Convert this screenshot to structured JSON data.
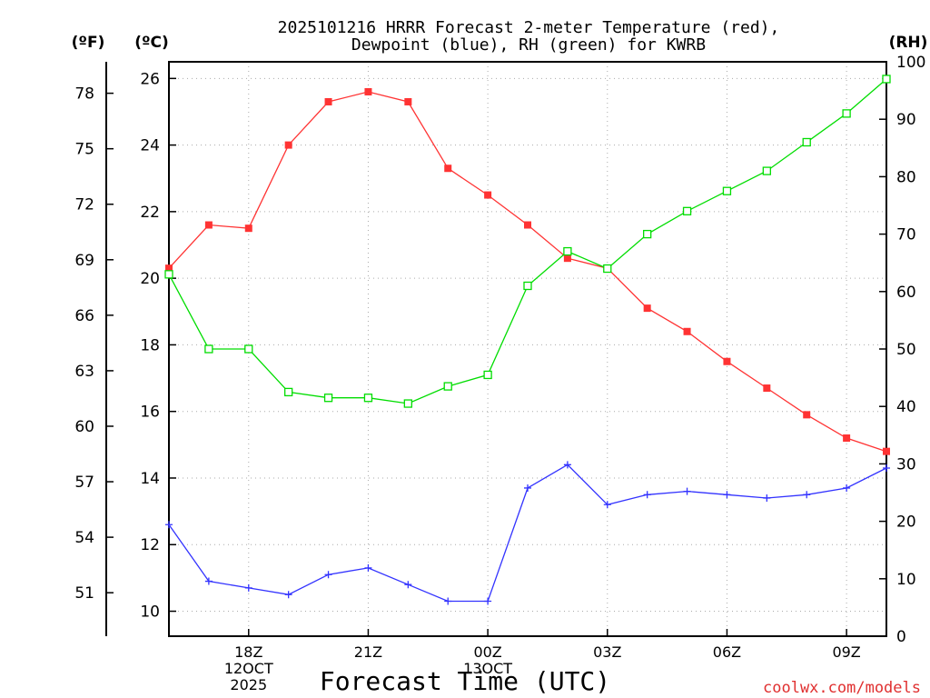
{
  "chart_data": {
    "type": "line",
    "title_line1": "2025101216 HRRR Forecast 2-meter Temperature (red),",
    "title_line2": "Dewpoint (blue), RH (green) for KWRB",
    "units": {
      "fahrenheit": "(ºF)",
      "celsius": "(ºC)",
      "rh": "(RH)"
    },
    "xlabel": "Forecast Time (UTC)",
    "credit": "coolwx.com/models",
    "x_hours_range": [
      16,
      34
    ],
    "x_ticks": [
      {
        "hour": 18,
        "lines": [
          "18Z",
          "12OCT",
          "2025"
        ]
      },
      {
        "hour": 21,
        "lines": [
          "21Z"
        ]
      },
      {
        "hour": 24,
        "lines": [
          "00Z",
          "13OCT"
        ]
      },
      {
        "hour": 27,
        "lines": [
          "03Z"
        ]
      },
      {
        "hour": 30,
        "lines": [
          "06Z"
        ]
      },
      {
        "hour": 33,
        "lines": [
          "09Z"
        ]
      }
    ],
    "y_celsius_range": [
      9.25,
      26.5
    ],
    "y_celsius_ticks": [
      10,
      12,
      14,
      16,
      18,
      20,
      22,
      24,
      26
    ],
    "y_fahrenheit_ticks": [
      51,
      54,
      57,
      60,
      63,
      66,
      69,
      72,
      75,
      78
    ],
    "y_rh_range": [
      0,
      100
    ],
    "y_rh_ticks": [
      0,
      10,
      20,
      30,
      40,
      50,
      60,
      70,
      80,
      90,
      100
    ],
    "x_hours": [
      16,
      17,
      18,
      19,
      20,
      21,
      22,
      23,
      24,
      25,
      26,
      27,
      28,
      29,
      30,
      31,
      32,
      33,
      34
    ],
    "series": [
      {
        "name": "2-meter Temperature",
        "axis": "celsius",
        "color": "#ff3333",
        "marker": "filled-square",
        "values": [
          20.3,
          21.6,
          21.5,
          24.0,
          25.3,
          25.6,
          25.3,
          23.3,
          22.5,
          21.6,
          20.6,
          20.3,
          19.1,
          18.4,
          17.5,
          16.7,
          15.9,
          15.2,
          14.8
        ]
      },
      {
        "name": "Dewpoint",
        "axis": "celsius",
        "color": "#3333ff",
        "marker": "plus",
        "values": [
          12.6,
          10.9,
          10.7,
          10.5,
          11.1,
          11.3,
          10.8,
          10.3,
          10.3,
          13.7,
          14.4,
          13.2,
          13.5,
          13.6,
          13.5,
          13.4,
          13.5,
          13.7,
          14.3
        ]
      },
      {
        "name": "RH",
        "axis": "rh",
        "color": "#00dd00",
        "marker": "open-square",
        "values": [
          63,
          50,
          50,
          42.5,
          41.5,
          41.5,
          40.5,
          43.5,
          45.5,
          61,
          67,
          64,
          70,
          74,
          77.5,
          81,
          86,
          91,
          97
        ]
      }
    ]
  }
}
